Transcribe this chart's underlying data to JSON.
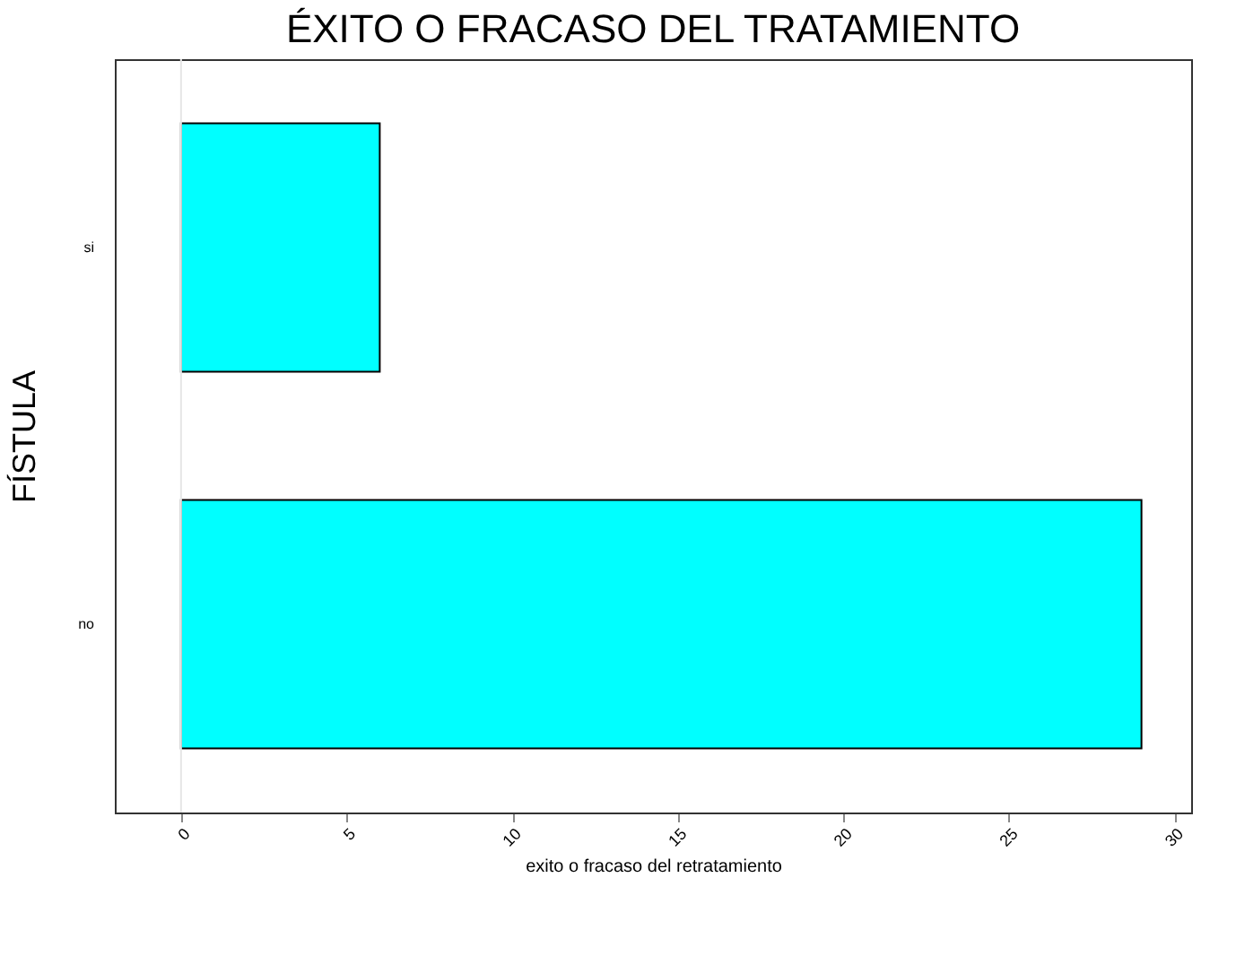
{
  "chart_data": {
    "type": "bar",
    "orientation": "horizontal",
    "title": "ÉXITO O FRACASO DEL TRATAMIENTO",
    "xlabel": "exito o fracaso del retratamiento",
    "ylabel": "FÍSTULA",
    "categories": [
      "si",
      "no"
    ],
    "values": [
      6,
      29
    ],
    "color": "#00ffff",
    "xlim": [
      -2,
      30.5
    ],
    "xticks": [
      0,
      5,
      10,
      15,
      20,
      25,
      30
    ],
    "grid": false,
    "ref_lines": [
      {
        "axis": "x",
        "value": 0,
        "color": "#e6e6e6"
      }
    ]
  }
}
